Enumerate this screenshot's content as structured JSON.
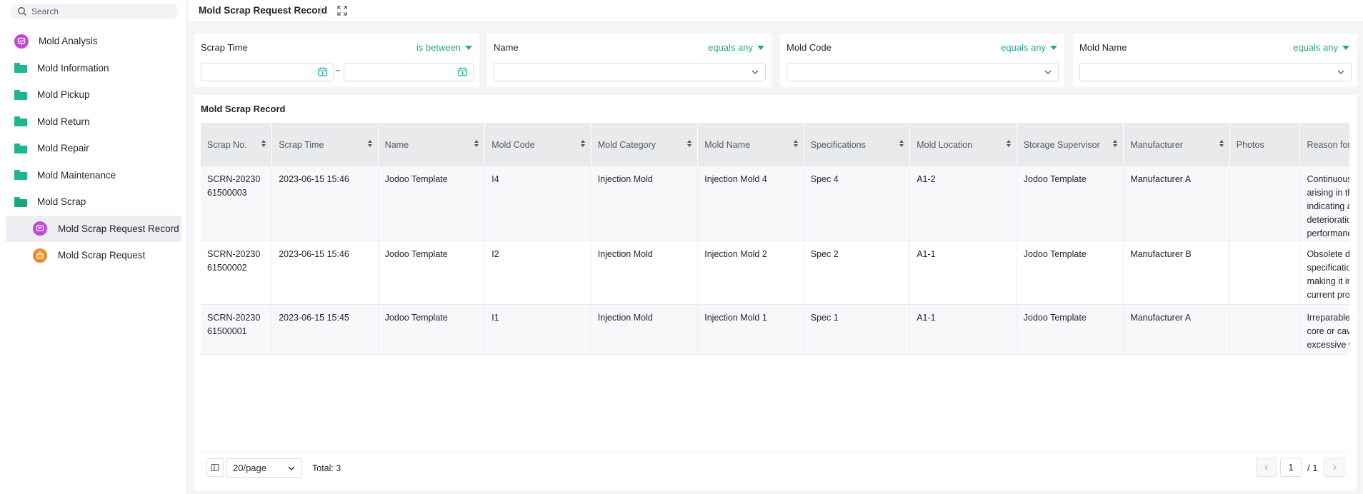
{
  "sidebar": {
    "search_placeholder": "Search",
    "items": [
      {
        "label": "Mold Analysis",
        "icon": "chart-icon"
      },
      {
        "label": "Mold Information",
        "icon": "folder-icon"
      },
      {
        "label": "Mold Pickup",
        "icon": "folder-icon"
      },
      {
        "label": "Mold Return",
        "icon": "folder-icon"
      },
      {
        "label": "Mold Repair",
        "icon": "folder-icon"
      },
      {
        "label": "Mold Maintenance",
        "icon": "folder-icon"
      },
      {
        "label": "Mold Scrap",
        "icon": "folder-open-icon"
      }
    ],
    "subitems": [
      {
        "label": "Mold Scrap Request Record",
        "icon": "record-icon",
        "active": true
      },
      {
        "label": "Mold Scrap Request",
        "icon": "request-icon",
        "active": false
      }
    ]
  },
  "header": {
    "title": "Mold Scrap Request Record"
  },
  "filters": {
    "scrap_time": {
      "label": "Scrap Time",
      "operator": "is between",
      "separator": "~"
    },
    "name": {
      "label": "Name",
      "operator": "equals any"
    },
    "mold_code": {
      "label": "Mold Code",
      "operator": "equals any"
    },
    "mold_name": {
      "label": "Mold Name",
      "operator": "equals any"
    }
  },
  "table": {
    "title": "Mold Scrap Record",
    "columns": [
      "Scrap No.",
      "Scrap Time",
      "Name",
      "Mold Code",
      "Mold Category",
      "Mold Name",
      "Specifications",
      "Mold Location",
      "Storage Supervisor",
      "Manufacturer",
      "Photos",
      "Reason for Scrapping"
    ],
    "rows": [
      {
        "scrap_no": "SCRN-2023061500003",
        "scrap_time": "2023-06-15 15:46",
        "name": "Jodoo Template",
        "mold_code": "I4",
        "mold_category": "Injection Mold",
        "mold_name": "Injection Mold 4",
        "specifications": "Spec 4",
        "mold_location": "A1-2",
        "storage_supervisor": "Jodoo Template",
        "manufacturer": "Manufacturer A",
        "photos": "",
        "reason": "Continuous quality issues arising in the molded parts, indicating a fundamental flaw or deterioration in the mold's performance."
      },
      {
        "scrap_no": "SCRN-2023061500002",
        "scrap_time": "2023-06-15 15:46",
        "name": "Jodoo Template",
        "mold_code": "I2",
        "mold_category": "Injection Mold",
        "mold_name": "Injection Mold 2",
        "specifications": "Spec 2",
        "mold_location": "A1-1",
        "storage_supervisor": "Jodoo Template",
        "manufacturer": "Manufacturer B",
        "photos": "",
        "reason": "Obsolete design or outdated specifications of the mold, making it incompatible with current production requirements."
      },
      {
        "scrap_no": "SCRN-2023061500001",
        "scrap_time": "2023-06-15 15:45",
        "name": "Jodoo Template",
        "mold_code": "I1",
        "mold_category": "Injection Mold",
        "mold_name": "Injection Mold 1",
        "specifications": "Spec 1",
        "mold_location": "A1-1",
        "storage_supervisor": "Jodoo Template",
        "manufacturer": "Manufacturer A",
        "photos": "",
        "reason": "Irreparable damage to the mold core or cavity resulting from excessive wear and tear."
      }
    ]
  },
  "pagination": {
    "page_size": "20/page",
    "total": "Total: 3",
    "current_page": "1",
    "of_pages": "/ 1"
  },
  "colors": {
    "accent": "#20a894",
    "folder": "#1fb58f",
    "purple_icon": "#c247d9",
    "orange_icon": "#f08a24"
  }
}
